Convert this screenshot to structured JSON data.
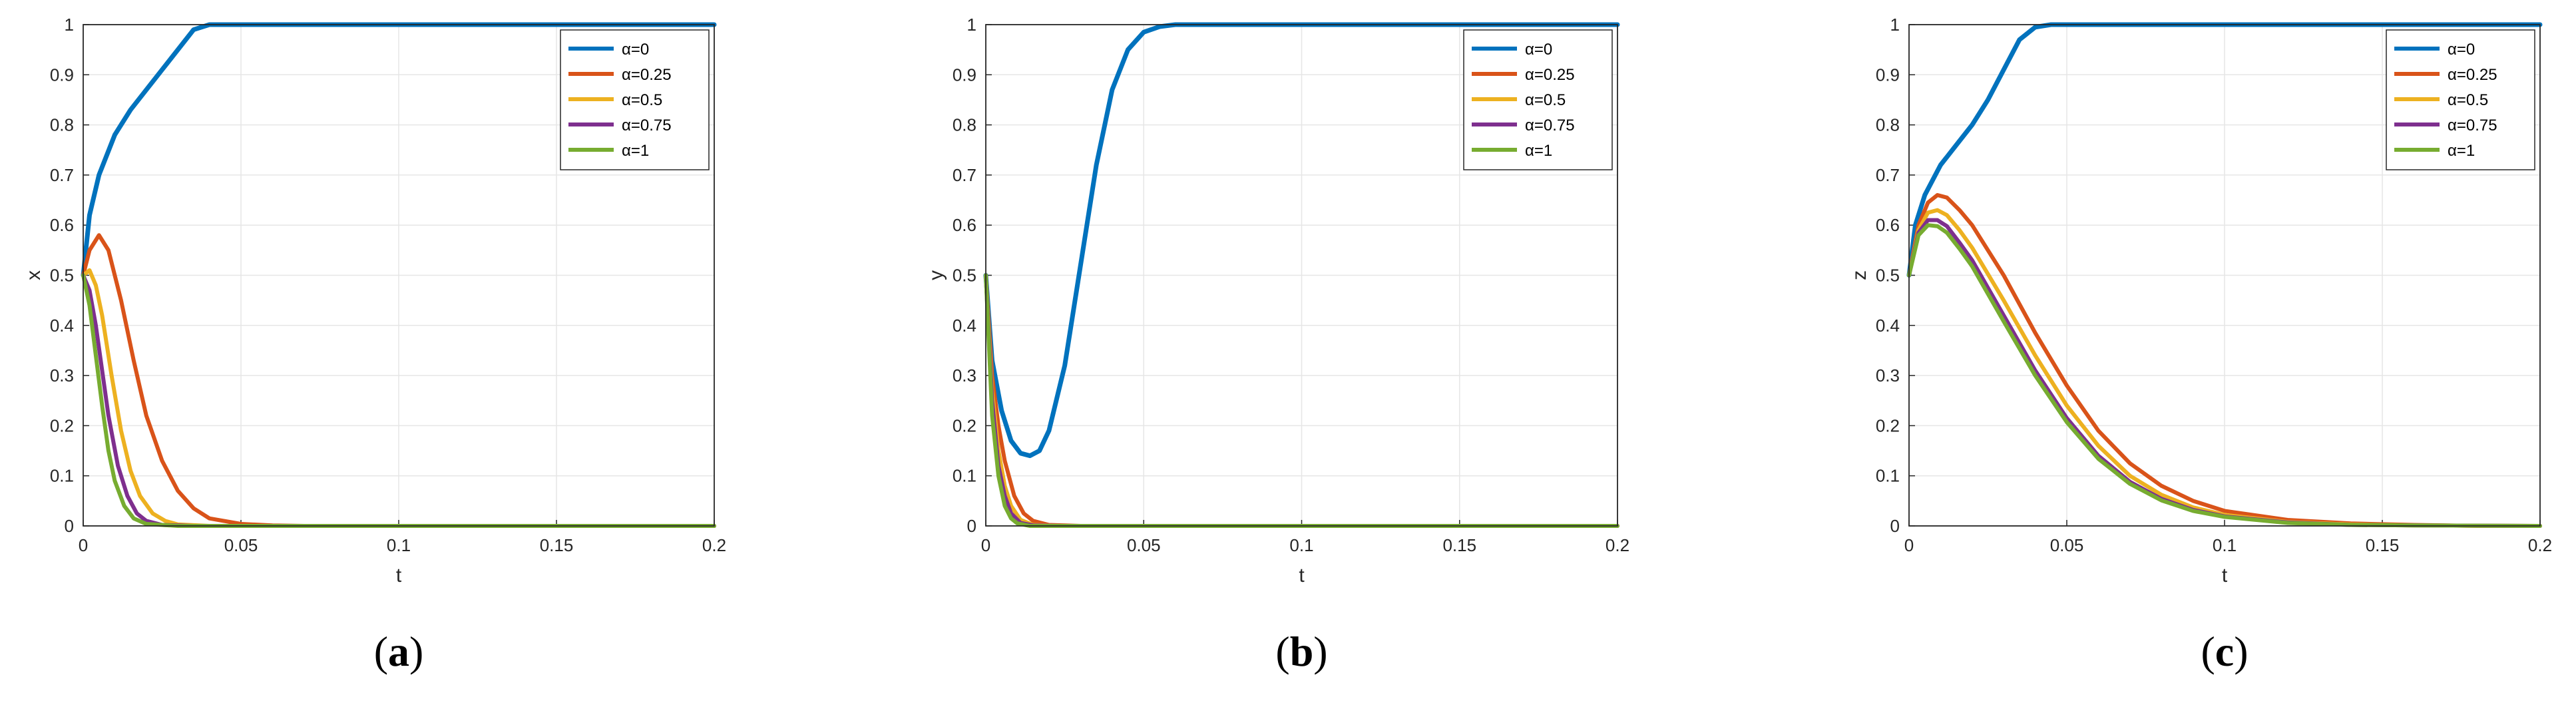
{
  "chart_data": [
    {
      "type": "line",
      "caption": "a",
      "xlabel": "t",
      "ylabel": "x",
      "xlim": [
        0,
        0.2
      ],
      "ylim": [
        0,
        1
      ],
      "xticks": [
        "0",
        "0.05",
        "0.1",
        "0.15",
        "0.2"
      ],
      "yticks": [
        "0",
        "0.1",
        "0.2",
        "0.3",
        "0.4",
        "0.5",
        "0.6",
        "0.7",
        "0.8",
        "0.9",
        "1"
      ],
      "grid": true,
      "legend_position": "top-right",
      "series": [
        {
          "name": "α=0",
          "color": "#0072BD",
          "x": [
            0,
            0.002,
            0.005,
            0.01,
            0.015,
            0.02,
            0.025,
            0.03,
            0.035,
            0.04,
            0.045,
            0.05,
            0.2
          ],
          "y": [
            0.5,
            0.62,
            0.7,
            0.78,
            0.83,
            0.87,
            0.91,
            0.95,
            0.99,
            1.0,
            1.0,
            1.0,
            1.0
          ]
        },
        {
          "name": "α=0.25",
          "color": "#D95319",
          "x": [
            0,
            0.002,
            0.005,
            0.008,
            0.012,
            0.016,
            0.02,
            0.025,
            0.03,
            0.035,
            0.04,
            0.05,
            0.06,
            0.07,
            0.2
          ],
          "y": [
            0.5,
            0.55,
            0.58,
            0.55,
            0.45,
            0.33,
            0.22,
            0.13,
            0.07,
            0.035,
            0.015,
            0.004,
            0.001,
            0.0,
            0.0
          ]
        },
        {
          "name": "α=0.5",
          "color": "#EDB120",
          "x": [
            0,
            0.002,
            0.004,
            0.006,
            0.009,
            0.012,
            0.015,
            0.018,
            0.022,
            0.026,
            0.03,
            0.04,
            0.2
          ],
          "y": [
            0.5,
            0.51,
            0.48,
            0.42,
            0.3,
            0.19,
            0.11,
            0.06,
            0.025,
            0.01,
            0.003,
            0.0,
            0.0
          ]
        },
        {
          "name": "α=0.75",
          "color": "#7E2F8E",
          "x": [
            0,
            0.002,
            0.004,
            0.006,
            0.008,
            0.011,
            0.014,
            0.017,
            0.02,
            0.025,
            0.035,
            0.2
          ],
          "y": [
            0.5,
            0.47,
            0.4,
            0.31,
            0.22,
            0.12,
            0.06,
            0.025,
            0.01,
            0.002,
            0.0,
            0.0
          ]
        },
        {
          "name": "α=1",
          "color": "#77AC30",
          "x": [
            0,
            0.002,
            0.004,
            0.006,
            0.008,
            0.01,
            0.013,
            0.016,
            0.02,
            0.03,
            0.2
          ],
          "y": [
            0.5,
            0.44,
            0.34,
            0.24,
            0.15,
            0.09,
            0.04,
            0.015,
            0.004,
            0.0,
            0.0
          ]
        }
      ]
    },
    {
      "type": "line",
      "caption": "b",
      "xlabel": "t",
      "ylabel": "y",
      "xlim": [
        0,
        0.2
      ],
      "ylim": [
        0,
        1
      ],
      "xticks": [
        "0",
        "0.05",
        "0.1",
        "0.15",
        "0.2"
      ],
      "yticks": [
        "0",
        "0.1",
        "0.2",
        "0.3",
        "0.4",
        "0.5",
        "0.6",
        "0.7",
        "0.8",
        "0.9",
        "1"
      ],
      "grid": true,
      "legend_position": "top-right",
      "series": [
        {
          "name": "α=0",
          "color": "#0072BD",
          "x": [
            0,
            0.002,
            0.005,
            0.008,
            0.011,
            0.014,
            0.017,
            0.02,
            0.025,
            0.03,
            0.035,
            0.04,
            0.045,
            0.05,
            0.055,
            0.06,
            0.07,
            0.2
          ],
          "y": [
            0.5,
            0.33,
            0.23,
            0.17,
            0.145,
            0.14,
            0.15,
            0.19,
            0.32,
            0.52,
            0.72,
            0.87,
            0.95,
            0.985,
            0.996,
            1.0,
            1.0,
            1.0
          ]
        },
        {
          "name": "α=0.25",
          "color": "#D95319",
          "x": [
            0,
            0.002,
            0.004,
            0.006,
            0.009,
            0.012,
            0.015,
            0.02,
            0.03,
            0.2
          ],
          "y": [
            0.5,
            0.3,
            0.2,
            0.13,
            0.06,
            0.025,
            0.01,
            0.002,
            0.0,
            0.0
          ]
        },
        {
          "name": "α=0.5",
          "color": "#EDB120",
          "x": [
            0,
            0.002,
            0.004,
            0.006,
            0.008,
            0.011,
            0.015,
            0.025,
            0.2
          ],
          "y": [
            0.5,
            0.27,
            0.15,
            0.08,
            0.04,
            0.012,
            0.002,
            0.0,
            0.0
          ]
        },
        {
          "name": "α=0.75",
          "color": "#7E2F8E",
          "x": [
            0,
            0.002,
            0.004,
            0.006,
            0.008,
            0.011,
            0.015,
            0.025,
            0.2
          ],
          "y": [
            0.5,
            0.25,
            0.12,
            0.06,
            0.025,
            0.006,
            0.001,
            0.0,
            0.0
          ]
        },
        {
          "name": "α=1",
          "color": "#77AC30",
          "x": [
            0,
            0.002,
            0.004,
            0.006,
            0.008,
            0.01,
            0.014,
            0.025,
            0.2
          ],
          "y": [
            0.5,
            0.22,
            0.1,
            0.04,
            0.015,
            0.005,
            0.0,
            0.0,
            0.0
          ]
        }
      ]
    },
    {
      "type": "line",
      "caption": "c",
      "xlabel": "t",
      "ylabel": "z",
      "xlim": [
        0,
        0.2
      ],
      "ylim": [
        0,
        1
      ],
      "xticks": [
        "0",
        "0.05",
        "0.1",
        "0.15",
        "0.2"
      ],
      "yticks": [
        "0",
        "0.1",
        "0.2",
        "0.3",
        "0.4",
        "0.5",
        "0.6",
        "0.7",
        "0.8",
        "0.9",
        "1"
      ],
      "grid": true,
      "legend_position": "top-right",
      "series": [
        {
          "name": "α=0",
          "color": "#0072BD",
          "x": [
            0,
            0.002,
            0.005,
            0.01,
            0.015,
            0.02,
            0.025,
            0.03,
            0.035,
            0.04,
            0.045,
            0.05,
            0.2
          ],
          "y": [
            0.5,
            0.6,
            0.66,
            0.72,
            0.76,
            0.8,
            0.85,
            0.91,
            0.97,
            0.995,
            1.0,
            1.0,
            1.0
          ]
        },
        {
          "name": "α=0.25",
          "color": "#D95319",
          "x": [
            0,
            0.003,
            0.006,
            0.009,
            0.012,
            0.016,
            0.02,
            0.03,
            0.04,
            0.05,
            0.06,
            0.07,
            0.08,
            0.09,
            0.1,
            0.12,
            0.14,
            0.16,
            0.18,
            0.2
          ],
          "y": [
            0.5,
            0.6,
            0.645,
            0.66,
            0.655,
            0.63,
            0.6,
            0.5,
            0.385,
            0.28,
            0.19,
            0.125,
            0.08,
            0.05,
            0.03,
            0.012,
            0.005,
            0.002,
            0.0,
            0.0
          ]
        },
        {
          "name": "α=0.5",
          "color": "#EDB120",
          "x": [
            0,
            0.003,
            0.006,
            0.009,
            0.012,
            0.016,
            0.02,
            0.03,
            0.04,
            0.05,
            0.06,
            0.07,
            0.08,
            0.09,
            0.1,
            0.12,
            0.14,
            0.16,
            0.2
          ],
          "y": [
            0.5,
            0.59,
            0.625,
            0.63,
            0.62,
            0.59,
            0.555,
            0.45,
            0.34,
            0.24,
            0.16,
            0.1,
            0.062,
            0.037,
            0.022,
            0.008,
            0.003,
            0.001,
            0.0
          ]
        },
        {
          "name": "α=0.75",
          "color": "#7E2F8E",
          "x": [
            0,
            0.003,
            0.006,
            0.009,
            0.012,
            0.016,
            0.02,
            0.03,
            0.04,
            0.05,
            0.06,
            0.07,
            0.08,
            0.09,
            0.1,
            0.12,
            0.14,
            0.16,
            0.2
          ],
          "y": [
            0.5,
            0.585,
            0.61,
            0.61,
            0.598,
            0.565,
            0.53,
            0.42,
            0.31,
            0.215,
            0.14,
            0.088,
            0.054,
            0.032,
            0.019,
            0.007,
            0.002,
            0.001,
            0.0
          ]
        },
        {
          "name": "α=1",
          "color": "#77AC30",
          "x": [
            0,
            0.003,
            0.006,
            0.009,
            0.012,
            0.016,
            0.02,
            0.03,
            0.04,
            0.05,
            0.06,
            0.07,
            0.08,
            0.09,
            0.1,
            0.12,
            0.14,
            0.16,
            0.2
          ],
          "y": [
            0.5,
            0.58,
            0.6,
            0.598,
            0.585,
            0.553,
            0.518,
            0.408,
            0.3,
            0.207,
            0.134,
            0.084,
            0.051,
            0.03,
            0.018,
            0.006,
            0.002,
            0.001,
            0.0
          ]
        }
      ]
    }
  ]
}
